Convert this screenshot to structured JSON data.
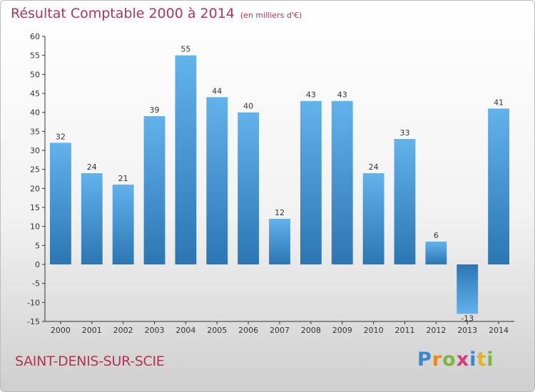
{
  "header": {
    "title": "Résultat Comptable 2000 à 2014",
    "subtitle": "(en milliers d'€)"
  },
  "commune": "SAINT-DENIS-SUR-SCIE",
  "logo": {
    "text": "Proxiti",
    "letters": [
      "P",
      "r",
      "o",
      "x",
      "i",
      "t",
      "i"
    ]
  },
  "colors": {
    "bar_top": "#62b2ec",
    "bar_bottom": "#2b76b3",
    "title": "#b5325a",
    "axis": "#333333"
  },
  "chart_data": {
    "type": "bar",
    "title": "Résultat Comptable 2000 à 2014",
    "subtitle": "(en milliers d'€)",
    "xlabel": "",
    "ylabel": "",
    "categories": [
      "2000",
      "2001",
      "2002",
      "2003",
      "2004",
      "2005",
      "2006",
      "2007",
      "2008",
      "2009",
      "2010",
      "2011",
      "2012",
      "2013",
      "2014"
    ],
    "values": [
      32,
      24,
      21,
      39,
      55,
      44,
      40,
      12,
      43,
      43,
      24,
      33,
      6,
      -13,
      41
    ],
    "ylim": [
      -15,
      60
    ],
    "yticks": [
      -15,
      -10,
      -5,
      0,
      5,
      10,
      15,
      20,
      25,
      30,
      35,
      40,
      45,
      50,
      55,
      60
    ],
    "grid": false,
    "legend": "none",
    "data_labels": true
  }
}
